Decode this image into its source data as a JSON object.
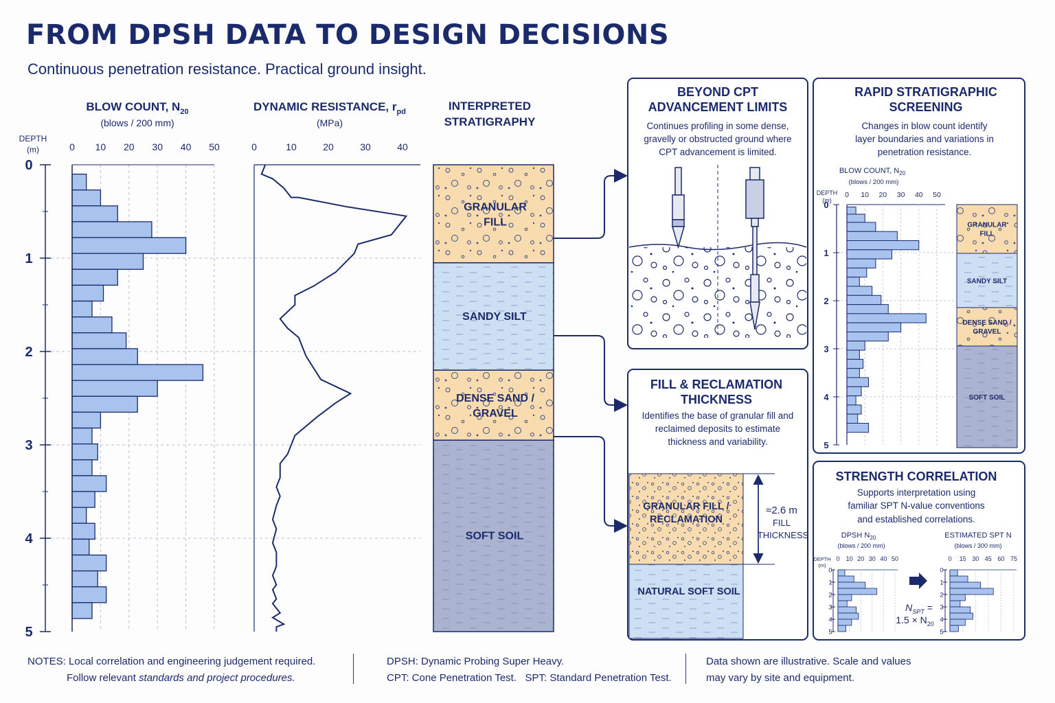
{
  "header": {
    "title": "FROM DPSH DATA TO DESIGN DECISIONS",
    "subtitle": "Continuous penetration resistance. Practical ground insight."
  },
  "colors": {
    "navy": "#1b2a6b",
    "bar_fill": "#a9c3ef",
    "granular": "#f8dcb0",
    "silt": "#cddff3",
    "soft": "#aab3cf"
  },
  "main_blow_chart": {
    "title": "BLOW COUNT, N",
    "title_sub": "20",
    "units": "(blows / 200 mm)",
    "depth_label_1": "DEPTH",
    "depth_label_2": "(m)",
    "x_ticks": [
      "0",
      "10",
      "20",
      "30",
      "40",
      "50"
    ],
    "y_ticks": [
      "0",
      "1",
      "2",
      "3",
      "4",
      "5"
    ]
  },
  "resistance_chart": {
    "title": "DYNAMIC RESISTANCE, r",
    "title_sub": "pd",
    "units": "(MPa)",
    "x_ticks": [
      "0",
      "10",
      "20",
      "30",
      "40"
    ]
  },
  "stratigraphy": {
    "title_1": "INTERPRETED",
    "title_2": "STRATIGRAPHY",
    "layers": [
      {
        "label_1": "GRANULAR",
        "label_2": "FILL",
        "top": 0,
        "bottom": 1.05,
        "kind": "granular"
      },
      {
        "label_1": "SANDY SILT",
        "label_2": "",
        "top": 1.05,
        "bottom": 2.2,
        "kind": "silt"
      },
      {
        "label_1": "DENSE SAND /",
        "label_2": "GRAVEL",
        "top": 2.2,
        "bottom": 2.95,
        "kind": "granular"
      },
      {
        "label_1": "SOFT SOIL",
        "label_2": "",
        "top": 2.95,
        "bottom": 5.0,
        "kind": "soft"
      }
    ]
  },
  "chart_data": [
    {
      "type": "bar",
      "title": "BLOW COUNT, N20",
      "xlabel": "(blows / 200 mm)",
      "ylabel": "DEPTH (m)",
      "xlim": [
        0,
        50
      ],
      "ylim": [
        0,
        5
      ],
      "depth_top": [
        0.1,
        0.27,
        0.44,
        0.61,
        0.78,
        0.95,
        1.12,
        1.29,
        1.46,
        1.63,
        1.8,
        1.97,
        2.14,
        2.31,
        2.48,
        2.65,
        2.82,
        2.99,
        3.16,
        3.33,
        3.5,
        3.67,
        3.84,
        4.01,
        4.18,
        4.35,
        4.52,
        4.69
      ],
      "values": [
        5,
        10,
        16,
        28,
        40,
        25,
        16,
        11,
        7,
        14,
        19,
        23,
        46,
        30,
        23,
        10,
        7,
        9,
        7,
        12,
        8,
        5,
        8,
        6,
        12,
        9,
        12,
        7
      ]
    },
    {
      "type": "line",
      "title": "DYNAMIC RESISTANCE, rpd",
      "xlabel": "(MPa)",
      "ylabel": "DEPTH (m)",
      "xlim": [
        0,
        40
      ],
      "ylim": [
        0,
        5
      ],
      "x": [
        3,
        2,
        5,
        8,
        10,
        12,
        25,
        41,
        37,
        28,
        27,
        22,
        16,
        11,
        11,
        7,
        9,
        12,
        13,
        14,
        18,
        26,
        22,
        17,
        11,
        9,
        7,
        7,
        6,
        7,
        6,
        5,
        6,
        5,
        6,
        6,
        5,
        6,
        5,
        6,
        5,
        7,
        5,
        8,
        6,
        6
      ],
      "y": [
        0,
        0.1,
        0.15,
        0.25,
        0.35,
        0.35,
        0.45,
        0.55,
        0.75,
        0.85,
        0.95,
        1.15,
        1.3,
        1.4,
        1.5,
        1.65,
        1.75,
        1.85,
        1.95,
        2.05,
        2.3,
        2.45,
        2.55,
        2.7,
        2.9,
        3.1,
        3.2,
        3.35,
        3.45,
        3.55,
        3.65,
        3.8,
        3.9,
        4.05,
        4.15,
        4.3,
        4.4,
        4.5,
        4.55,
        4.65,
        4.7,
        4.8,
        4.85,
        4.92,
        4.95,
        5.0
      ]
    },
    {
      "type": "bar",
      "title": "BLOW COUNT, N20",
      "xlabel": "(blows / 200 mm)",
      "ylabel": "DEPTH (m)",
      "xlim": [
        0,
        50
      ],
      "ylim": [
        0,
        5
      ],
      "depth_top": [
        0.05,
        0.2,
        0.37,
        0.56,
        0.75,
        0.94,
        1.13,
        1.32,
        1.51,
        1.7,
        1.89,
        2.08,
        2.27,
        2.46,
        2.65,
        2.84,
        3.03,
        3.22,
        3.41,
        3.6,
        3.79,
        3.98,
        4.17,
        4.36,
        4.55
      ],
      "values": [
        5,
        10,
        16,
        28,
        40,
        25,
        16,
        11,
        7,
        14,
        19,
        23,
        44,
        30,
        23,
        10,
        7,
        9,
        7,
        12,
        8,
        5,
        8,
        6,
        12
      ]
    },
    {
      "type": "bar",
      "title": "DPSH N20",
      "xlabel": "(blows / 200 mm)",
      "ylabel": "DEPTH (m)",
      "xlim": [
        0,
        50
      ],
      "ylim": [
        0,
        5
      ],
      "depth_top": [
        0,
        0.5,
        1.0,
        1.5,
        2.0,
        2.5,
        3.0,
        3.5,
        4.0,
        4.5
      ],
      "values": [
        6,
        14,
        24,
        34,
        12,
        8,
        16,
        18,
        12,
        7
      ]
    },
    {
      "type": "bar",
      "title": "ESTIMATED SPT N",
      "xlabel": "(blows / 300 mm)",
      "ylabel": "DEPTH (m)",
      "xlim": [
        0,
        75
      ],
      "ylim": [
        0,
        5
      ],
      "depth_top": [
        0,
        0.5,
        1.0,
        1.5,
        2.0,
        2.5,
        3.0,
        3.5,
        4.0,
        4.5
      ],
      "values": [
        9,
        21,
        36,
        51,
        18,
        12,
        24,
        27,
        18,
        10
      ]
    }
  ],
  "callouts": {
    "beyond": {
      "title_1": "BEYOND CPT",
      "title_2": "ADVANCEMENT LIMITS",
      "body_1": "Continues profiling in some dense,",
      "body_2": "gravelly or obstructed ground where",
      "body_3": "CPT advancement is limited."
    },
    "fill": {
      "title_1": "FILL & RECLAMATION",
      "title_2": "THICKNESS",
      "body_1": "Identifies the base of granular fill and",
      "body_2": "reclaimed deposits to estimate",
      "body_3": "thickness and variability.",
      "layer_top_1": "GRANULAR FILL /",
      "layer_top_2": "RECLAMATION",
      "layer_bottom": "NATURAL SOFT SOIL",
      "dim_1": "≈2.6 m",
      "dim_2": "FILL",
      "dim_3": "THICKNESS"
    },
    "rapid": {
      "title_1": "RAPID STRATIGRAPHIC",
      "title_2": "SCREENING",
      "body_1": "Changes in blow count identify",
      "body_2": "layer boundaries and variations in",
      "body_3": "penetration resistance.",
      "chart_title": "BLOW COUNT, N",
      "chart_title_sub": "20",
      "chart_units": "(blows / 200 mm)",
      "depth_1": "DEPTH",
      "depth_2": "(m)",
      "x_ticks": [
        "0",
        "10",
        "20",
        "30",
        "40",
        "50"
      ],
      "y_ticks": [
        "0",
        "1",
        "2",
        "3",
        "4",
        "5"
      ],
      "layers": [
        {
          "label_1": "GRANULAR",
          "label_2": "FILL",
          "kind": "granular"
        },
        {
          "label_1": "SANDY SILT",
          "label_2": "",
          "kind": "silt"
        },
        {
          "label_1": "DENSE SAND /",
          "label_2": "GRAVEL",
          "kind": "granular"
        },
        {
          "label_1": "SOFT SOIL",
          "label_2": "",
          "kind": "soft"
        }
      ]
    },
    "strength": {
      "title": "STRENGTH CORRELATION",
      "body_1": "Supports interpretation using",
      "body_2": "familiar SPT N-value conventions",
      "body_3": "and established correlations.",
      "left_title": "DPSH N",
      "left_title_sub": "20",
      "left_units": "(blows / 200 mm)",
      "right_title": "ESTIMATED SPT N",
      "right_units": "(blows / 300 mm)",
      "depth_1": "DEPTH",
      "depth_2": "(m)",
      "left_ticks": [
        "0",
        "10",
        "20",
        "30",
        "40",
        "50"
      ],
      "right_ticks": [
        "0",
        "15",
        "30",
        "45",
        "60",
        "75"
      ],
      "y_ticks": [
        "0",
        "1",
        "2",
        "3",
        "4",
        "5"
      ],
      "formula_1": "N",
      "formula_1_sub": "SPT",
      "formula_1_eq": " =",
      "formula_2": "1.5 × N",
      "formula_2_sub": "20"
    }
  },
  "notes": {
    "label": "NOTES:",
    "line_1": "Local correlation and engineering judgement required.",
    "line_2_a": "Follow relevant ",
    "line_2_b": "standards and project procedures.",
    "mid_1": "DPSH: Dynamic Probing Super Heavy.",
    "mid_2": "CPT: Cone Penetration Test.   SPT: Standard Penetration Test.",
    "right_1": "Data shown are illustrative. Scale and values",
    "right_2": "may vary by site and equipment."
  }
}
